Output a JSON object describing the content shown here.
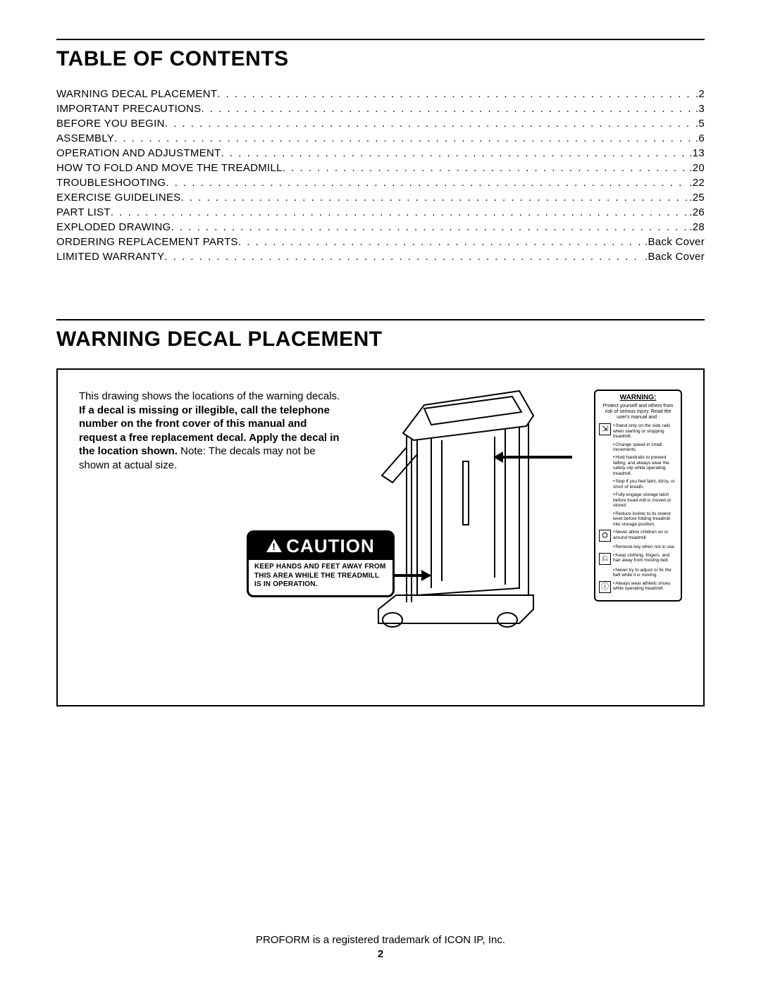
{
  "colors": {
    "text": "#000000",
    "background": "#ffffff",
    "rule": "#000000",
    "decal_header_bg": "#000000",
    "decal_header_fg": "#ffffff"
  },
  "typography": {
    "title_fontsize_pt": 22,
    "body_fontsize_pt": 11,
    "toc_fontsize_pt": 11,
    "caution_header_fontsize_pt": 20,
    "warning_small_fontsize_pt": 5
  },
  "toc_title": "TABLE OF CONTENTS",
  "toc": [
    {
      "label": "WARNING DECAL PLACEMENT",
      "page": ".2"
    },
    {
      "label": "IMPORTANT PRECAUTIONS",
      "page": ".3"
    },
    {
      "label": "BEFORE YOU BEGIN",
      "page": ".5"
    },
    {
      "label": "ASSEMBLY",
      "page": ".6"
    },
    {
      "label": "OPERATION AND ADJUSTMENT",
      "page": ".13"
    },
    {
      "label": "HOW TO FOLD AND MOVE THE TREADMILL",
      "page": ".20"
    },
    {
      "label": "TROUBLESHOOTING",
      "page": ".22"
    },
    {
      "label": "EXERCISE GUIDELINES",
      "page": ".25"
    },
    {
      "label": "PART LIST",
      "page": ".26"
    },
    {
      "label": "EXPLODED DRAWING",
      "page": ".28"
    },
    {
      "label": "ORDERING REPLACEMENT PARTS",
      "page": ".Back Cover"
    },
    {
      "label": "LIMITED WARRANTY",
      "page": ".Back Cover"
    }
  ],
  "placement_title": "WARNING DECAL PLACEMENT",
  "placement_text": {
    "lead": "This drawing shows the locations of the warning decals. ",
    "bold": "If a decal is missing or illegible, call the telephone number on the front cover of this manual and request a free replacement decal. Apply the decal in the location shown.",
    "tail": " Note: The decals may not be shown at actual size."
  },
  "caution": {
    "header": "CAUTION",
    "body": "KEEP HANDS AND FEET AWAY FROM THIS AREA WHILE THE TREADMILL IS IN OPERATION."
  },
  "warning_label": {
    "title": "WARNING:",
    "intro": "Protect yourself and others from risk of serious injury. Read the user's manual and :",
    "items": [
      {
        "icon": "⇲",
        "text": "Stand only on the side rails when starting or stopping treadmill."
      },
      {
        "icon": "",
        "text": "Change speed in small increments."
      },
      {
        "icon": "",
        "text": "Hold handrails to prevent falling, and always wear the safety clip while operating treadmill."
      },
      {
        "icon": "",
        "text": "Stop if you feel faint, dizzy, or short of breath."
      },
      {
        "icon": "",
        "text": "Fully engage storage latch before tread-mill is moved or stored."
      },
      {
        "icon": "",
        "text": "Reduce incline to its lowest level before folding treadmill into storage position."
      },
      {
        "icon": "⛭",
        "text": "Never allow children on or around treadmill."
      },
      {
        "icon": "",
        "text": "Remove key when not in use."
      },
      {
        "icon": "⎌",
        "text": "Keep clothing, fingers, and hair away from moving belt."
      },
      {
        "icon": "",
        "text": "Never try to adjust or fix the belt while it is moving."
      },
      {
        "icon": "ⓘ",
        "text": "Always wear athletic shoes while operating treadmill."
      }
    ]
  },
  "footer": {
    "trademark": "PROFORM is a registered trademark of ICON IP, Inc.",
    "page_number": "2"
  }
}
